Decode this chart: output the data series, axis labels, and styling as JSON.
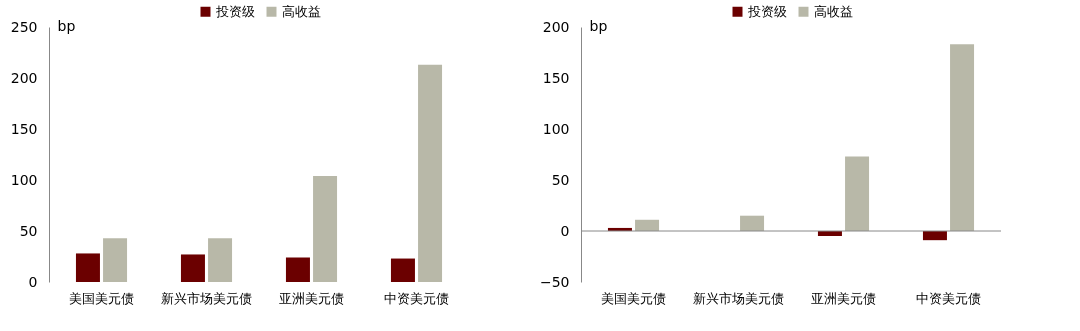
{
  "chart_data": [
    {
      "type": "bar",
      "ylabel": "bp",
      "categories": [
        "美国美元债",
        "新兴市场美元债",
        "亚洲美元债",
        "中资美元债"
      ],
      "ylim": [
        0,
        250
      ],
      "yticks": [
        0,
        50,
        100,
        150,
        200,
        250
      ],
      "grid": false,
      "legend": "top",
      "series": [
        {
          "name": "投资级",
          "color": "#6b0000",
          "values": [
            28,
            27,
            24,
            23
          ]
        },
        {
          "name": "高收益",
          "color": "#b8b8a8",
          "values": [
            43,
            43,
            104,
            213
          ]
        }
      ]
    },
    {
      "type": "bar",
      "ylabel": "bp",
      "categories": [
        "美国美元债",
        "新兴市场美元债",
        "亚洲美元债",
        "中资美元债"
      ],
      "ylim": [
        -50,
        200
      ],
      "yticks": [
        -50,
        0,
        50,
        100,
        150,
        200
      ],
      "grid": false,
      "legend": "top",
      "ref_lines": [
        {
          "axis": "y",
          "value": 0
        }
      ],
      "series": [
        {
          "name": "投资级",
          "color": "#6b0000",
          "values": [
            3,
            0,
            -5,
            -9
          ]
        },
        {
          "name": "高收益",
          "color": "#b8b8a8",
          "values": [
            11,
            15,
            73,
            183
          ]
        }
      ]
    }
  ]
}
